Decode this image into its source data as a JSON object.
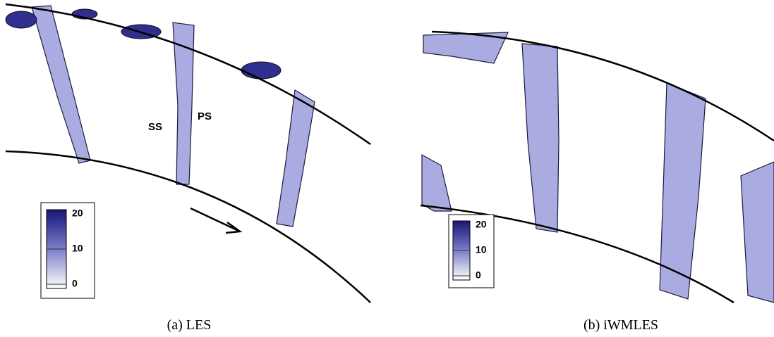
{
  "panels": [
    {
      "caption": "(a) LES",
      "annotations": [
        "SS",
        "PS"
      ],
      "colorbar": {
        "ticks": [
          20,
          10,
          0
        ]
      }
    },
    {
      "caption": "(b) iWMLES",
      "colorbar": {
        "ticks": [
          20,
          10,
          0
        ]
      }
    }
  ]
}
